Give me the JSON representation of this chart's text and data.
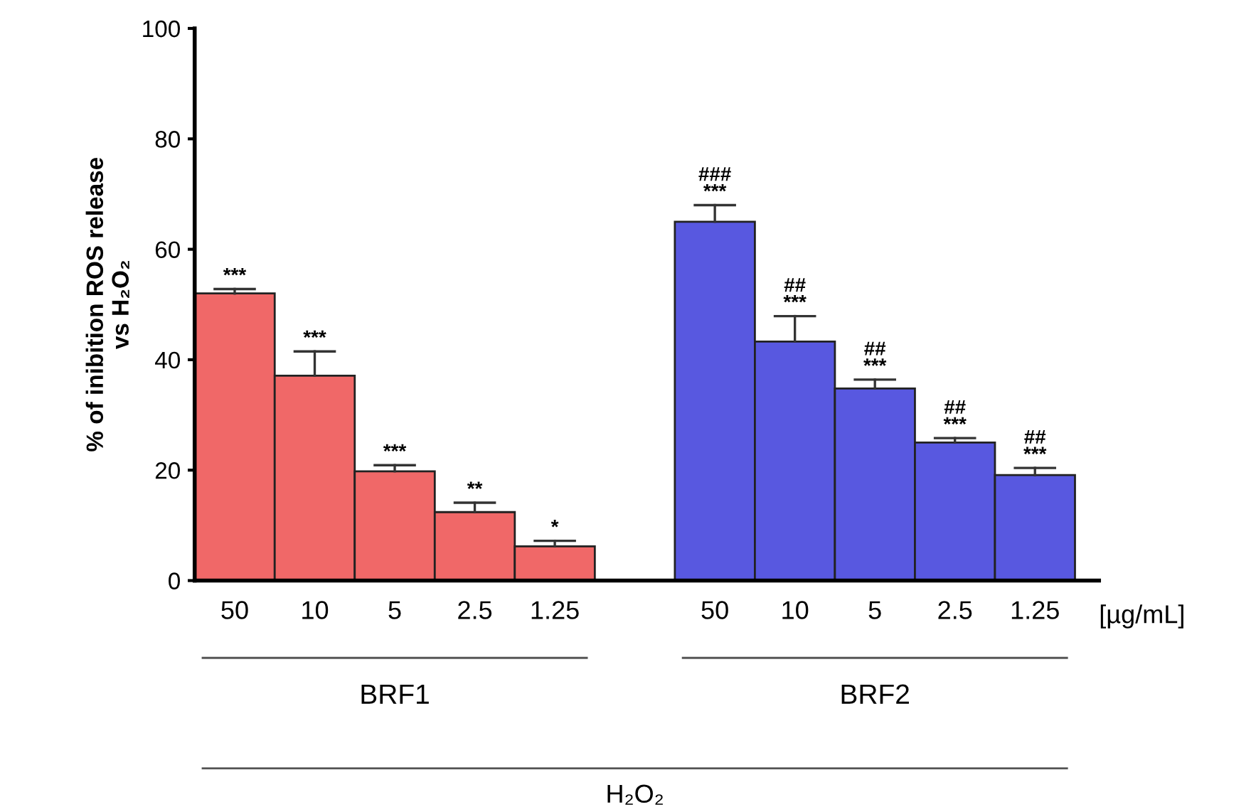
{
  "chart_data": {
    "type": "bar",
    "ylabel": "% of inibition ROS release\nvs H₂O₂",
    "categories": [
      "50",
      "10",
      "5",
      "2.5",
      "1.25",
      null,
      "50",
      "10",
      "5",
      "2.5",
      "1.25"
    ],
    "values": [
      52,
      37.1,
      19.8,
      12.4,
      6.2,
      null,
      65,
      43.3,
      34.8,
      25,
      19.1
    ],
    "colors": [
      "#f06868",
      "#f06868",
      "#f06868",
      "#f06868",
      "#f06868",
      null,
      "#5858e0",
      "#5858e0",
      "#5858e0",
      "#5858e0",
      "#5858e0"
    ],
    "errors": [
      [
        52,
        52.8
      ],
      [
        37.1,
        41.5
      ],
      [
        19.8,
        20.9
      ],
      [
        12.4,
        14.1
      ],
      [
        6.2,
        7.2
      ],
      null,
      [
        65,
        68
      ],
      [
        43.3,
        47.9
      ],
      [
        34.8,
        36.4
      ],
      [
        25,
        25.8
      ],
      [
        19.1,
        20.4
      ]
    ],
    "value_labels": [
      "***",
      "***",
      "***",
      "**",
      "*",
      null,
      "###\n***",
      "##\n***",
      "##\n***",
      "##\n***",
      "##\n***"
    ],
    "ylim": [
      0,
      100
    ],
    "yticks": [
      0,
      20,
      40,
      60,
      80,
      100
    ],
    "grid": false,
    "legend": false,
    "annotations": [
      "[µg/mL]",
      "BRF1",
      "BRF2",
      "H₂O₂"
    ]
  }
}
